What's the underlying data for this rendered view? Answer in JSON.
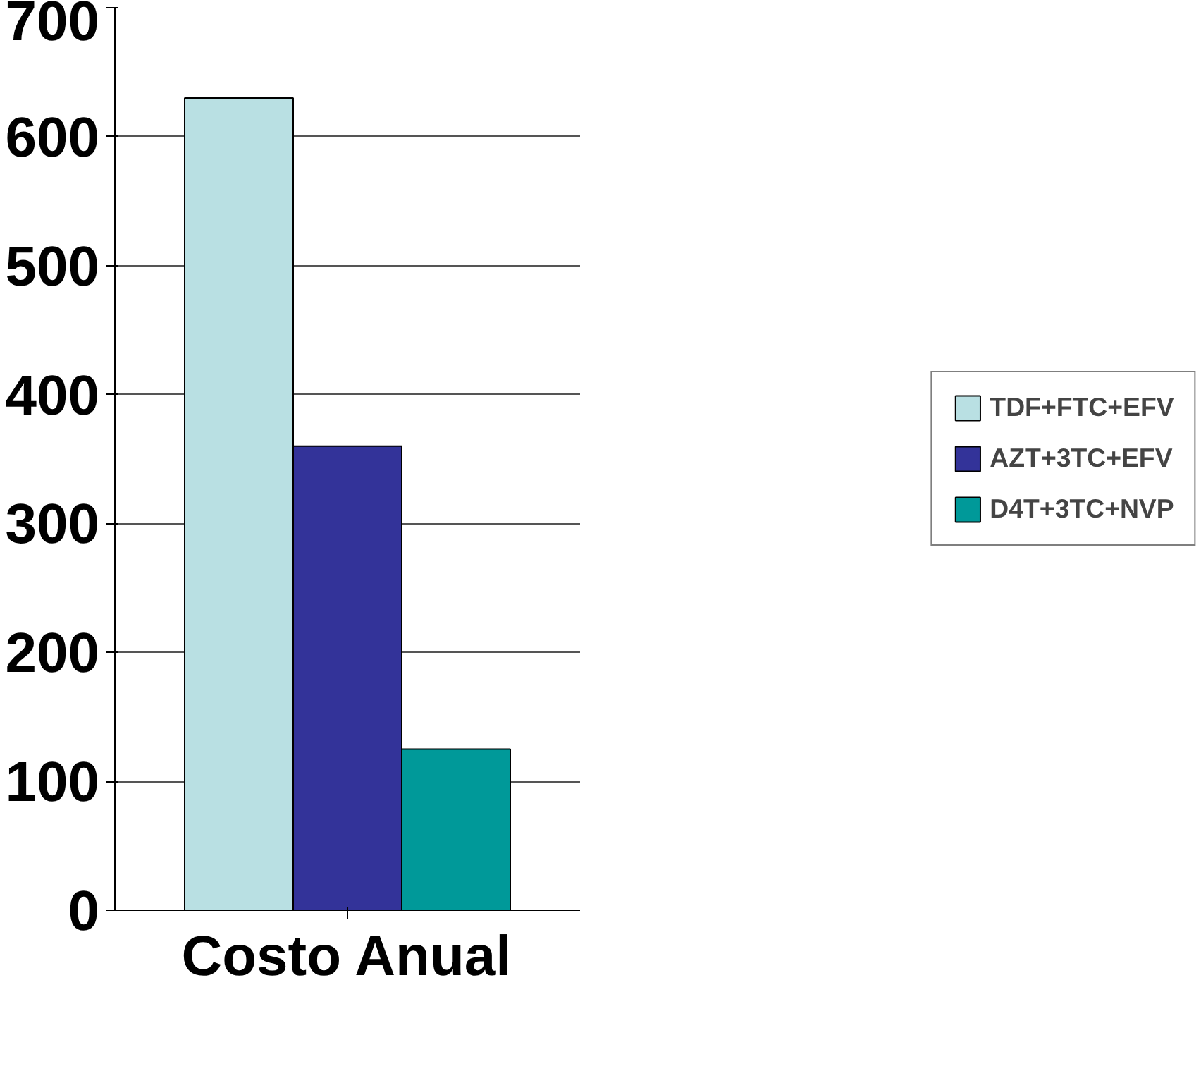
{
  "chart_data": {
    "type": "bar",
    "categories": [
      "Costo Anual"
    ],
    "series": [
      {
        "name": "TDF+FTC+EFV",
        "color": "#b9e0e3",
        "values": [
          630
        ]
      },
      {
        "name": "AZT+3TC+EFV",
        "color": "#333399",
        "values": [
          360
        ]
      },
      {
        "name": "D4T+3TC+NVP",
        "color": "#009999",
        "values": [
          125
        ]
      }
    ],
    "ylim": [
      0,
      700
    ],
    "yticks": [
      0,
      100,
      200,
      300,
      400,
      500,
      600,
      700
    ],
    "grid": "y",
    "legend": "right"
  }
}
